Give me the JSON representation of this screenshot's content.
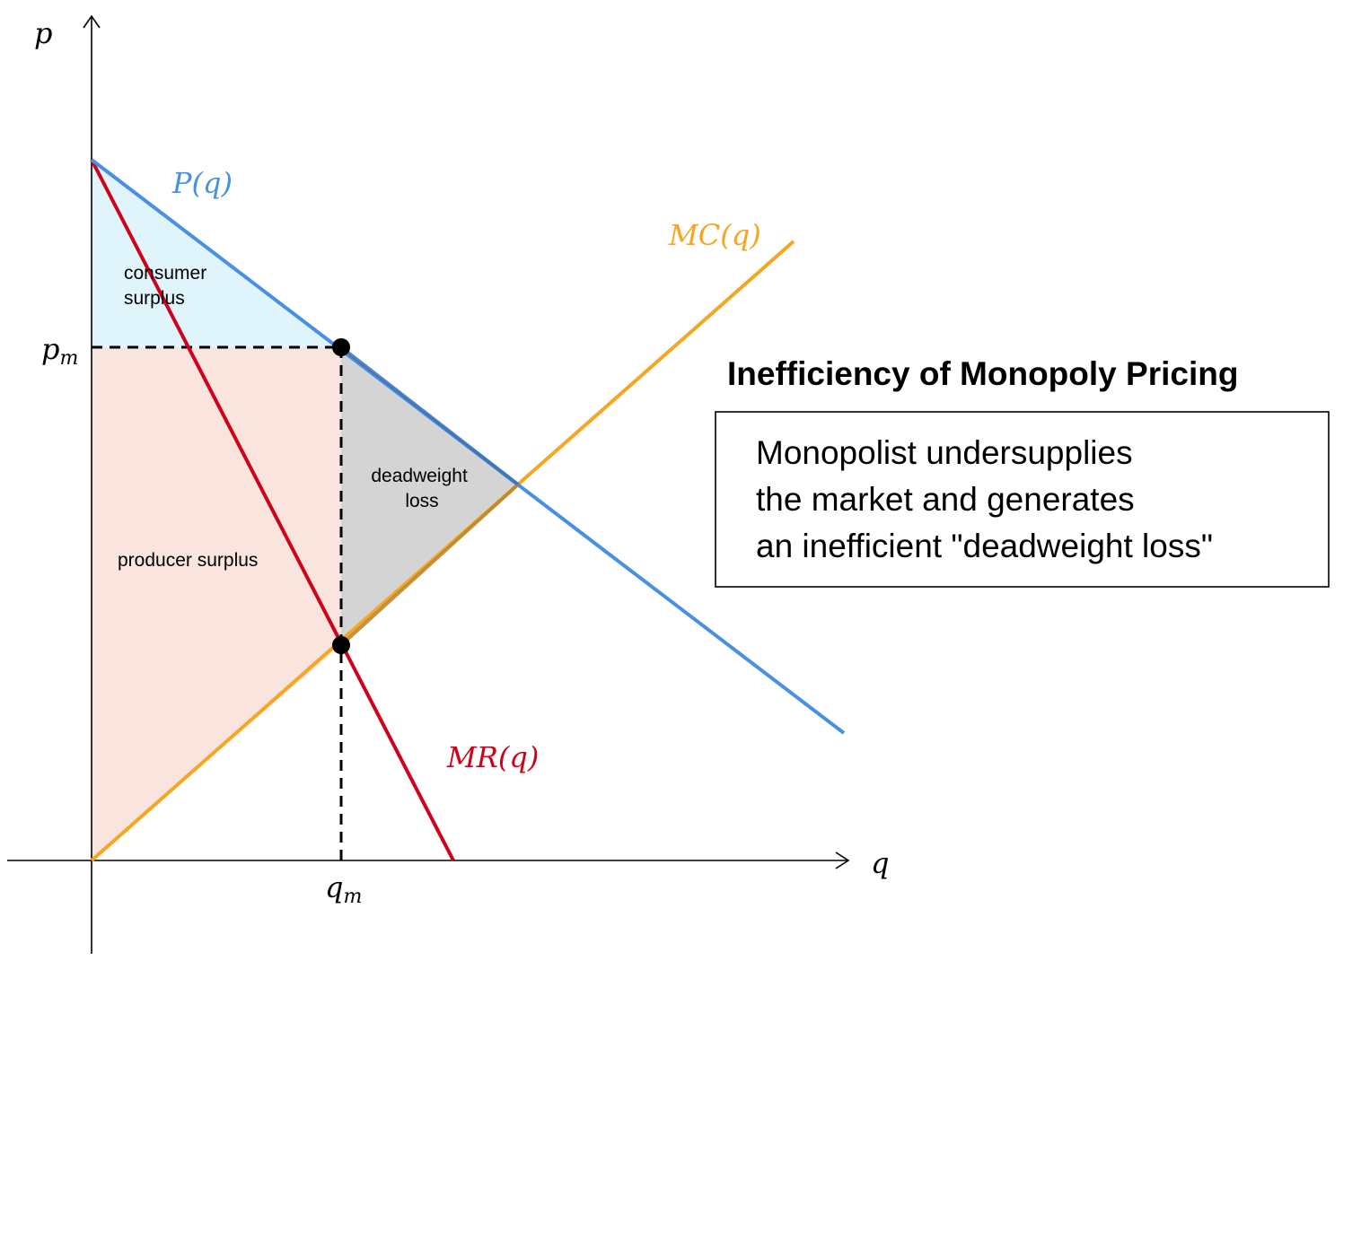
{
  "axes": {
    "y_label": "p",
    "x_label": "q",
    "pm_label": {
      "base": "p",
      "sub": "m"
    },
    "qm_label": {
      "base": "q",
      "sub": "m"
    }
  },
  "curves": {
    "demand": {
      "label": "P(q)",
      "color": "#4a90e2"
    },
    "marginal_cost": {
      "label": "MC(q)",
      "color": "#f5a623"
    },
    "marginal_revenue": {
      "label": "MR(q)",
      "color": "#d0021b"
    }
  },
  "regions": {
    "consumer_surplus": {
      "line1": "consumer",
      "line2": "surplus",
      "color": "#e0f4fb"
    },
    "producer_surplus": {
      "label": "producer surplus",
      "color": "#fae4de"
    },
    "deadweight_loss": {
      "line1": "deadweight",
      "line2": "loss",
      "color": "#d4d4d4"
    }
  },
  "title": "Inefficiency of Monopoly Pricing",
  "note": {
    "line1": "Monopolist undersupplies",
    "line2": "the market and generates",
    "line3": "an inefficient \"deadweight loss\""
  }
}
